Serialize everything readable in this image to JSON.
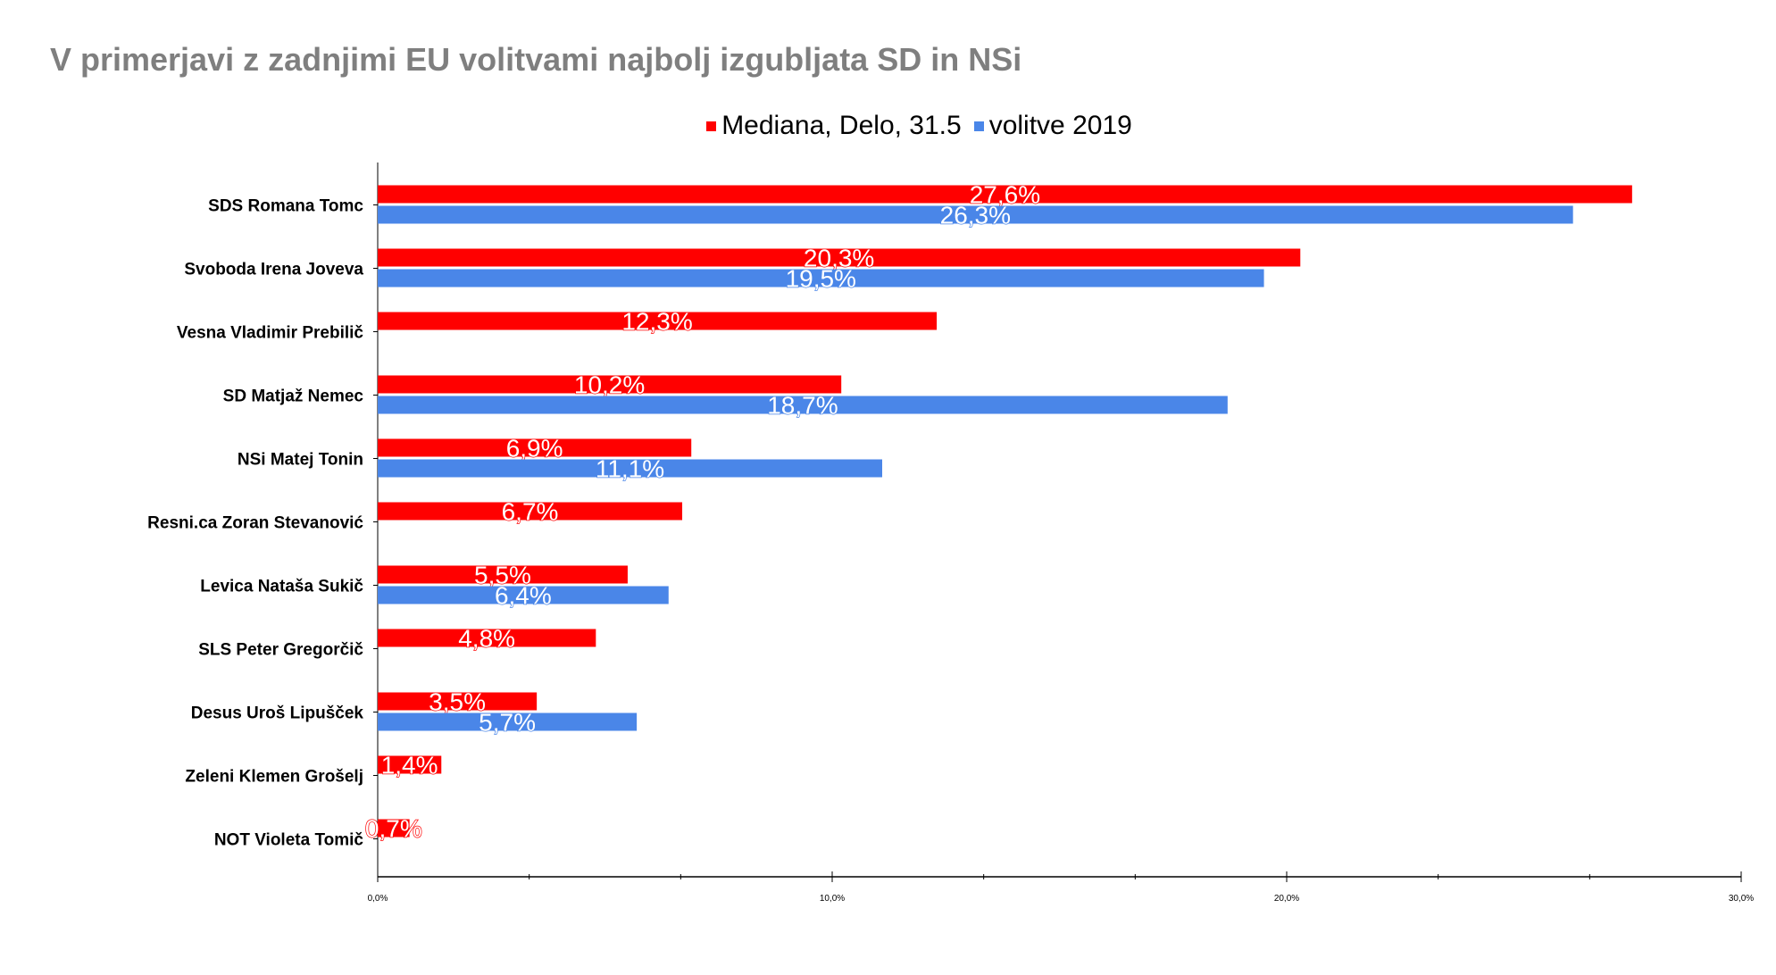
{
  "chart_data": {
    "type": "bar",
    "orientation": "horizontal",
    "title": "V primerjavi z zadnjimi EU volitvami najbolj izgubljata SD in NSi",
    "categories": [
      "SDS Romana Tomc",
      "Svoboda Irena Joveva",
      "Vesna Vladimir Prebilič",
      "SD Matjaž Nemec",
      "NSi Matej Tonin",
      "Resni.ca Zoran Stevanović",
      "Levica Nataša Sukič",
      "SLS Peter Gregorčič",
      "Desus Uroš Lipušček",
      "Zeleni Klemen Grošelj",
      "NOT Violeta Tomič"
    ],
    "series": [
      {
        "name": "Mediana, Delo, 31.5",
        "color": "#ff0000",
        "values": [
          27.6,
          20.3,
          12.3,
          10.2,
          6.9,
          6.7,
          5.5,
          4.8,
          3.5,
          1.4,
          0.7
        ],
        "labels": [
          "27,6%",
          "20,3%",
          "12,3%",
          "10,2%",
          "6,9%",
          "6,7%",
          "5,5%",
          "4,8%",
          "3,5%",
          "1,4%",
          "0,7%"
        ]
      },
      {
        "name": "volitve 2019",
        "color": "#4a86e8",
        "values": [
          26.3,
          19.5,
          null,
          18.7,
          11.1,
          null,
          6.4,
          null,
          5.7,
          null,
          null
        ],
        "labels": [
          "26,3%",
          "19,5%",
          null,
          "18,7%",
          "11,1%",
          null,
          "6,4%",
          null,
          "5,7%",
          null,
          null
        ]
      }
    ],
    "xlim": [
      0,
      30
    ],
    "xticks": [
      0,
      10,
      20,
      30
    ],
    "xtick_labels": [
      "0,0%",
      "10,0%",
      "20,0%",
      "30,0%"
    ],
    "xlabel": "",
    "ylabel": "",
    "legend": "top-center",
    "grid": false
  }
}
